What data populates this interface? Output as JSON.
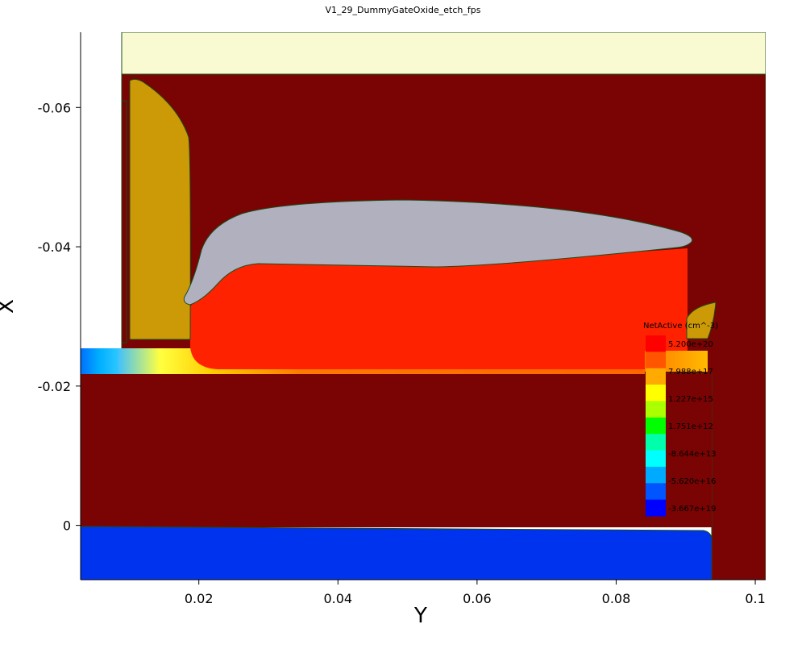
{
  "chart_data": {
    "type": "heatmap",
    "title": "V1_29_DummyGateOxide_etch_fps",
    "xlabel": "Y",
    "ylabel": "X",
    "xlim": [
      0.003,
      0.1015
    ],
    "ylim": [
      -0.0708,
      0.0078
    ],
    "y_axis_inverted": true,
    "x_ticks": [
      "0.02",
      "0.04",
      "0.06",
      "0.08",
      "0.1"
    ],
    "x_tick_values": [
      0.02,
      0.04,
      0.06,
      0.08,
      0.1
    ],
    "y_ticks": [
      "-0.06",
      "-0.04",
      "-0.02",
      "0"
    ],
    "y_tick_values": [
      -0.06,
      -0.04,
      -0.02,
      0
    ],
    "colorbar": {
      "title": "NetActive (cm^-3)",
      "labels": [
        "5.200e+20",
        "7.988e+17",
        "1.227e+15",
        "1.751e+12",
        "-8.644e+13",
        "-5.620e+16",
        "-3.667e+19"
      ],
      "colors": [
        "#ff0000",
        "#ff5500",
        "#ffaa00",
        "#ffff00",
        "#aaff00",
        "#00ff00",
        "#00ffaa",
        "#00ffff",
        "#00aaff",
        "#0055ff",
        "#0000ff"
      ]
    },
    "regions": [
      {
        "material": "Gas",
        "color": "#ffffff"
      },
      {
        "material": "Nitride",
        "color": "#fafad2"
      },
      {
        "material": "Silicon",
        "color": "#7a0303"
      },
      {
        "material": "Oxide",
        "color": "#cc9a06"
      },
      {
        "material": "Gate",
        "color": "#b0b0bf"
      },
      {
        "material": "Doped-Si-n",
        "color": "#ff2200"
      },
      {
        "material": "Doped-Si-p",
        "color": "#0033ee"
      }
    ]
  }
}
